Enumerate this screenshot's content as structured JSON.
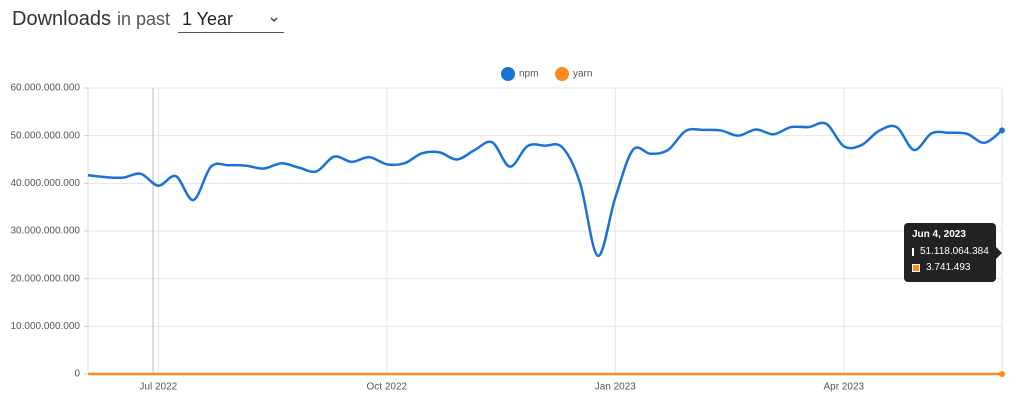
{
  "header": {
    "title": "Downloads",
    "period_label": "in past",
    "period": "1 Year"
  },
  "chart_data": {
    "type": "line",
    "categories": [
      null,
      null,
      null,
      null,
      "Jul 2022",
      null,
      null,
      null,
      null,
      null,
      null,
      null,
      null,
      null,
      null,
      null,
      null,
      "Oct 2022",
      null,
      null,
      null,
      null,
      null,
      null,
      null,
      null,
      null,
      null,
      null,
      null,
      "Jan 2023",
      null,
      null,
      null,
      null,
      null,
      null,
      null,
      null,
      null,
      null,
      null,
      null,
      "Apr 2023",
      null,
      null,
      null,
      null,
      null,
      null,
      null,
      null,
      null
    ],
    "series": [
      {
        "name": "npm",
        "color": "#1a73d4",
        "values": [
          41700000000,
          41300000000,
          41200000000,
          42000000000,
          39500000000,
          41500000000,
          36500000000,
          43500000000,
          43800000000,
          43700000000,
          43100000000,
          44200000000,
          43300000000,
          42500000000,
          45600000000,
          44500000000,
          45500000000,
          44000000000,
          44200000000,
          46300000000,
          46500000000,
          45000000000,
          47000000000,
          48600000000,
          43500000000,
          47800000000,
          47900000000,
          47500000000,
          40000000000,
          24800000000,
          37000000000,
          47000000000,
          46200000000,
          47000000000,
          51000000000,
          51200000000,
          51100000000,
          50000000000,
          51300000000,
          50300000000,
          51800000000,
          51800000000,
          52500000000,
          47800000000,
          48000000000,
          51000000000,
          51800000000,
          47000000000,
          50500000000,
          50600000000,
          50400000000,
          48500000000,
          51118064384
        ]
      },
      {
        "name": "yarn",
        "color": "#ff8a1f",
        "values": [
          3600000,
          3650000,
          3620000,
          3700000,
          3550000,
          3600000,
          3500000,
          3680000,
          3700000,
          3690000,
          3650000,
          3720000,
          3680000,
          3640000,
          3750000,
          3700000,
          3740000,
          3690000,
          3700000,
          3760000,
          3780000,
          3720000,
          3790000,
          3820000,
          3650000,
          3800000,
          3800000,
          3780000,
          3500000,
          2900000,
          3400000,
          3750000,
          3700000,
          3740000,
          3800000,
          3820000,
          3810000,
          3760000,
          3820000,
          3780000,
          3830000,
          3830000,
          3850000,
          3700000,
          3710000,
          3790000,
          3810000,
          3680000,
          3770000,
          3770000,
          3760000,
          3700000,
          3741493
        ]
      }
    ],
    "ylim": [
      0,
      60000000000
    ],
    "yticks": [
      0,
      {
        "value": 10000000000,
        "label": "10.000.000.000"
      },
      {
        "value": 20000000000,
        "label": "20.000.000.000"
      },
      {
        "value": 30000000000,
        "label": "30.000.000.000"
      },
      {
        "value": 40000000000,
        "label": "40.000.000.000"
      },
      {
        "value": 50000000000,
        "label": "50.000.000.000"
      },
      {
        "value": 60000000000,
        "label": "60.000.000.000"
      }
    ],
    "grid": true,
    "legend": "top",
    "tooltip": {
      "title": "Jun 4, 2023",
      "value_labels": [
        "51.118.064.384",
        "3.741.493"
      ]
    }
  }
}
